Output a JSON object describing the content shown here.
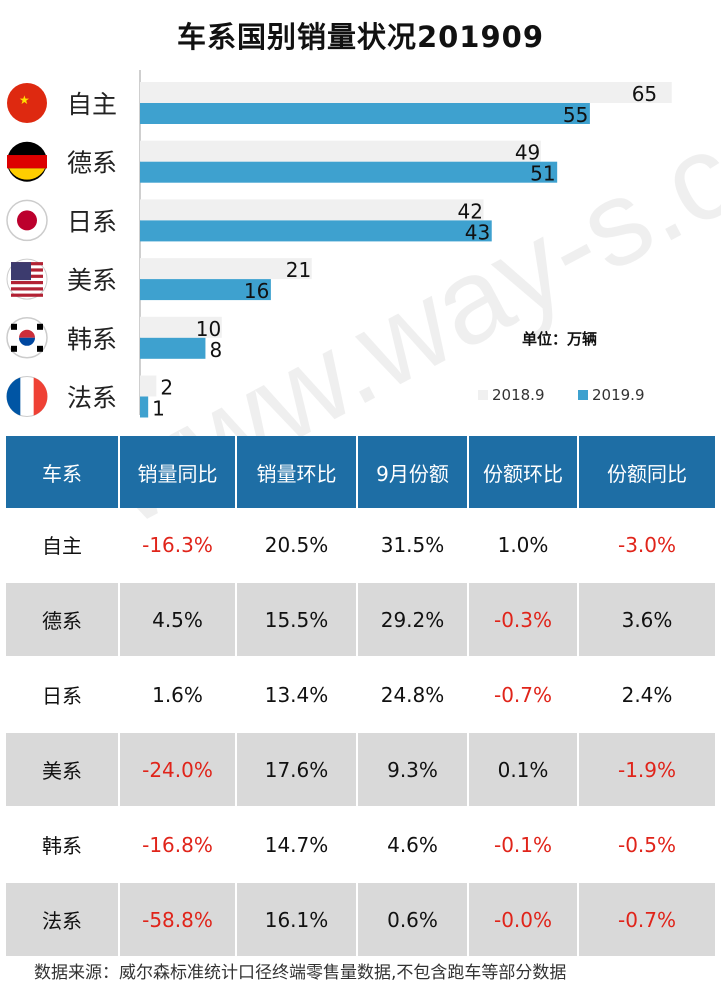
{
  "title": "车系国别销量状况201909",
  "unit_label": "单位：万辆",
  "watermark": "www.way-s.cn",
  "colors": {
    "bar_2018": "#f0f0f0",
    "bar_2019": "#3ea1cf",
    "header_bg": "#1e6ea5",
    "negative": "#e0241a",
    "shade": "#d9d9d9"
  },
  "chart_data": {
    "type": "bar",
    "orientation": "horizontal",
    "categories": [
      "自主",
      "德系",
      "日系",
      "美系",
      "韩系",
      "法系"
    ],
    "flag_icons": [
      "china-flag-icon",
      "germany-flag-icon",
      "japan-flag-icon",
      "usa-flag-icon",
      "korea-flag-icon",
      "france-flag-icon"
    ],
    "series": [
      {
        "name": "2018.9",
        "values": [
          65,
          49,
          42,
          21,
          10,
          2
        ]
      },
      {
        "name": "2019.9",
        "values": [
          55,
          51,
          43,
          16,
          8,
          1
        ]
      }
    ],
    "xlim": [
      0,
      70
    ],
    "legend": "bottom-right",
    "ylabel": "",
    "xlabel": ""
  },
  "table": {
    "headers": [
      "车系",
      "销量同比",
      "销量环比",
      "9月份额",
      "份额环比",
      "份额同比"
    ],
    "rows": [
      [
        "自主",
        "-16.3%",
        "20.5%",
        "31.5%",
        "1.0%",
        "-3.0%"
      ],
      [
        "德系",
        "4.5%",
        "15.5%",
        "29.2%",
        "-0.3%",
        "3.6%"
      ],
      [
        "日系",
        "1.6%",
        "13.4%",
        "24.8%",
        "-0.7%",
        "2.4%"
      ],
      [
        "美系",
        "-24.0%",
        "17.6%",
        "9.3%",
        "0.1%",
        "-1.9%"
      ],
      [
        "韩系",
        "-16.8%",
        "14.7%",
        "4.6%",
        "-0.1%",
        "-0.5%"
      ],
      [
        "法系",
        "-58.8%",
        "16.1%",
        "0.6%",
        "-0.0%",
        "-0.7%"
      ]
    ]
  },
  "footer": "数据来源：威尔森标准统计口径终端零售量数据,不包含跑车等部分数据"
}
